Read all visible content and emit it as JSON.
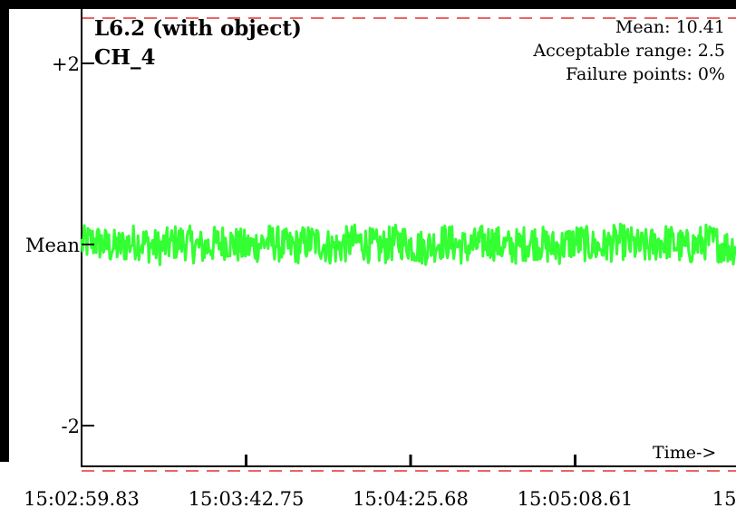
{
  "chart_data": {
    "type": "line",
    "title": "L6.2 (with object)",
    "subtitle": "CH_4",
    "stats": {
      "mean_label": "Mean: 10.41",
      "range_label": "Acceptable range: 2.5",
      "failure_label": "Failure points: 0%"
    },
    "y_ticks": [
      {
        "label": "+2",
        "value": 2
      },
      {
        "label": "Mean",
        "value": 0
      },
      {
        "label": "-2",
        "value": -2
      }
    ],
    "ylim": [
      -2.45,
      2.6
    ],
    "limit_lines": [
      2.5,
      -2.5
    ],
    "x_ticks": [
      "15:02:59.83",
      "15:03:42.75",
      "15:04:25.68",
      "15:05:08.61",
      "15:05"
    ],
    "x_axis_label": "Time->",
    "series": [
      {
        "color": "#33ff33",
        "mean_offset": 0.0,
        "noise_amplitude": 0.2,
        "n_points": 720
      }
    ],
    "colors": {
      "series": "#33ff33",
      "limit": "#e63030",
      "axis": "#000000",
      "left_bar": "#000000"
    }
  }
}
